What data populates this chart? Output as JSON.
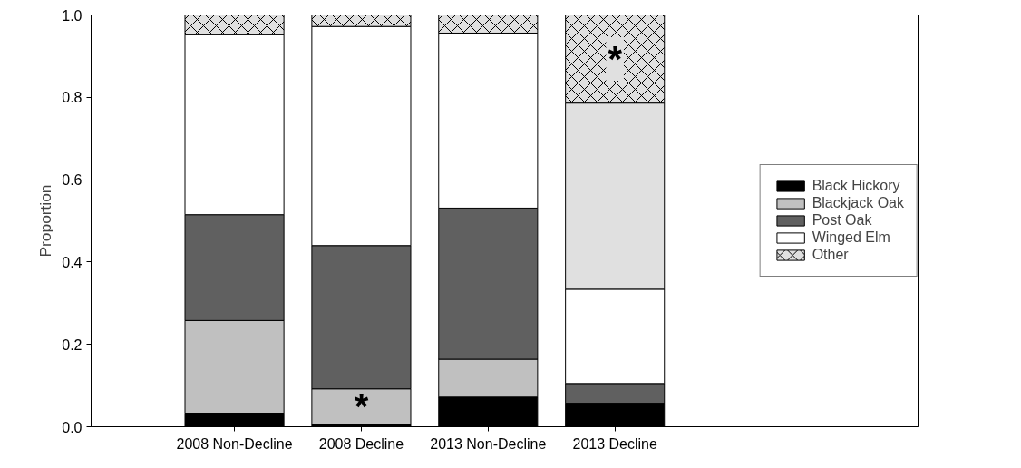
{
  "chart_data": {
    "type": "bar",
    "stacked": true,
    "ylabel": "Proportion",
    "categories": [
      "2008 Non-Decline",
      "2008 Decline",
      "2013 Non-Decline",
      "2013 Decline"
    ],
    "series": [
      {
        "name": "Black Hickory",
        "color": "#000000",
        "values": [
          0.033,
          0.006,
          0.072,
          0.057
        ]
      },
      {
        "name": "Blackjack Oak",
        "color": "#c0c0c0",
        "values": [
          0.225,
          0.086,
          0.092,
          null
        ]
      },
      {
        "name": "Post Oak",
        "color": "#606060",
        "values": [
          0.257,
          0.348,
          0.367,
          0.048
        ]
      },
      {
        "name": "Winged Elm",
        "color": "#ffffff",
        "values": [
          0.437,
          0.532,
          0.425,
          0.229
        ]
      },
      {
        "color": "#e0e0e0",
        "values": [
          null,
          null,
          null,
          0.452
        ]
      },
      {
        "name": "Other",
        "color": "#e0e0e0",
        "values": [
          0.048,
          0.028,
          0.044,
          0.214
        ]
      }
    ],
    "ylim": [
      0,
      1.0
    ],
    "yticks": [
      {
        "value": 0,
        "label": "0.0"
      },
      {
        "value": 0.2,
        "label": "0.2"
      },
      {
        "value": 0.4,
        "label": "0.4"
      },
      {
        "value": 0.6,
        "label": "0.6"
      },
      {
        "value": 0.8,
        "label": "0.8"
      },
      {
        "value": 1.0,
        "label": "1.0"
      }
    ],
    "grid": false,
    "legend": "right",
    "annotations": [
      "*",
      "*"
    ]
  }
}
